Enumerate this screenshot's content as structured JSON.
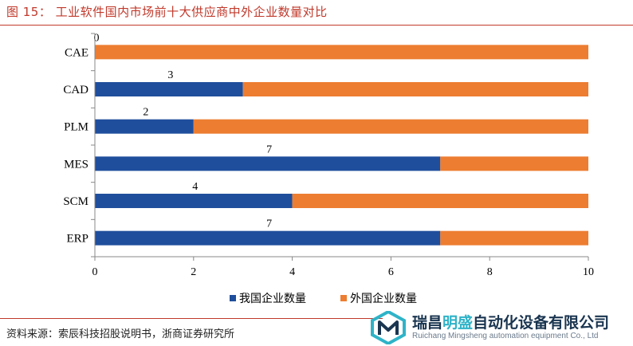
{
  "title": "图 15： 工业软件国内市场前十大供应商中外企业数量对比",
  "source": "资料来源：索辰科技招股说明书，浙商证券研究所",
  "brand": {
    "name_part1": "瑞昌",
    "name_highlight": "明盛",
    "name_part2": "自动化设备有限公司",
    "english": "Ruichang Mingsheng automation equipment Co., Ltd"
  },
  "colors": {
    "domestic": "#1f4e9c",
    "foreign": "#ed7d31",
    "title": "#c0392b"
  },
  "chart_data": {
    "type": "bar",
    "orientation": "horizontal",
    "stacked": true,
    "categories": [
      "CAE",
      "CAD",
      "PLM",
      "MES",
      "SCM",
      "ERP"
    ],
    "series": [
      {
        "name": "我国企业数量",
        "values": [
          0,
          3,
          2,
          7,
          4,
          7
        ]
      },
      {
        "name": "外国企业数量",
        "values": [
          10,
          7,
          8,
          3,
          6,
          3
        ]
      }
    ],
    "data_labels": [
      "0",
      "3",
      "2",
      "7",
      "4",
      "7"
    ],
    "xlim": [
      0,
      10
    ],
    "xticks": [
      0,
      2,
      4,
      6,
      8,
      10
    ],
    "grid": false,
    "legend": "bottom"
  }
}
